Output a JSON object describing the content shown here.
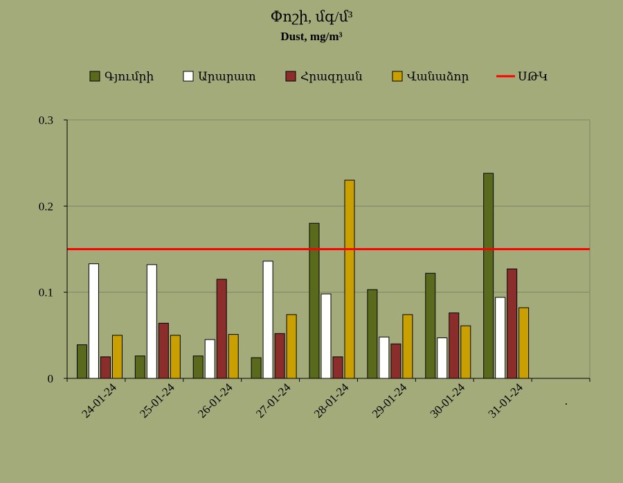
{
  "chart_data": {
    "type": "bar",
    "title": "Փոշի, մգ/մ³",
    "subtitle": "Dust, mg/m³",
    "categories": [
      "24-01-24",
      "25-01-24",
      "26-01-24",
      "27-01-24",
      "28-01-24",
      "29-01-24",
      "30-01-24",
      "31-01-24"
    ],
    "extra_tick_label": ".",
    "series": [
      {
        "name": "Գյումրի",
        "color": "#5a6a1c",
        "values": [
          0.039,
          0.026,
          0.026,
          0.024,
          0.18,
          0.103,
          0.122,
          0.238
        ]
      },
      {
        "name": "Արարատ",
        "color": "#ffffff",
        "values": [
          0.133,
          0.132,
          0.045,
          0.136,
          0.098,
          0.048,
          0.047,
          0.094
        ]
      },
      {
        "name": "Հրազդան",
        "color": "#8b2e2b",
        "values": [
          0.025,
          0.064,
          0.115,
          0.052,
          0.025,
          0.04,
          0.076,
          0.127
        ]
      },
      {
        "name": "Վանաձոր",
        "color": "#c9a000",
        "values": [
          0.05,
          0.05,
          0.051,
          0.074,
          0.23,
          0.074,
          0.061,
          0.082
        ]
      }
    ],
    "reference_line": {
      "name": "ՍԹԿ",
      "value": 0.15,
      "color": "#ff0000"
    },
    "ylim": [
      0,
      0.3
    ],
    "yticks": [
      0,
      0.1,
      0.2,
      0.3
    ],
    "ytick_labels": [
      "0",
      "0.1",
      "0.2",
      "0.3"
    ],
    "xlabel": "",
    "ylabel": "",
    "grid": true,
    "legend_position": "top"
  }
}
